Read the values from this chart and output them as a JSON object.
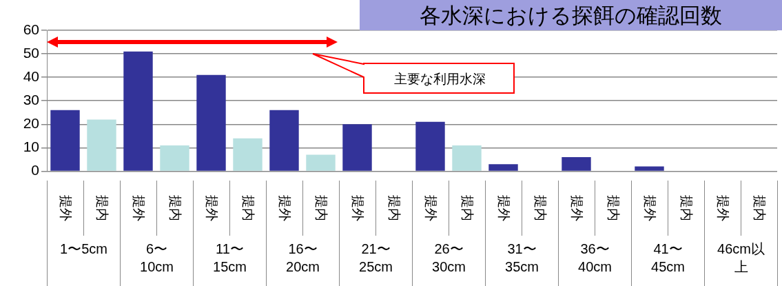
{
  "chart_data": {
    "type": "bar",
    "title": "各水深における探餌の確認回数",
    "categories": [
      "提外",
      "提内",
      "提外",
      "提内",
      "提外",
      "提内",
      "提外",
      "提内",
      "提外",
      "提内",
      "提外",
      "提内",
      "提外",
      "提内",
      "提外",
      "提内",
      "提外",
      "提内",
      "提外",
      "提内"
    ],
    "values": [
      26,
      22,
      51,
      11,
      41,
      14,
      26,
      7,
      20,
      0,
      21,
      11,
      3,
      0,
      6,
      0,
      2,
      0,
      0,
      0
    ],
    "colors": [
      "#333399",
      "#b7e0e0",
      "#333399",
      "#b7e0e0",
      "#333399",
      "#b7e0e0",
      "#333399",
      "#b7e0e0",
      "#333399",
      "#b7e0e0",
      "#333399",
      "#b7e0e0",
      "#333399",
      "#b7e0e0",
      "#333399",
      "#b7e0e0",
      "#333399",
      "#b7e0e0",
      "#333399",
      "#b7e0e0"
    ],
    "ylim": [
      0,
      60
    ],
    "yticks": [
      0,
      10,
      20,
      30,
      40,
      50,
      60
    ],
    "grid": "y",
    "annotations": [
      "1〜5cm",
      "6〜\n10cm",
      "11〜\n15cm",
      "16〜\n20cm",
      "21〜\n25cm",
      "26〜\n30cm",
      "31〜\n35cm",
      "36〜\n40cm",
      "41〜\n45cm",
      "46cm以上",
      "主要な利用水深"
    ]
  }
}
